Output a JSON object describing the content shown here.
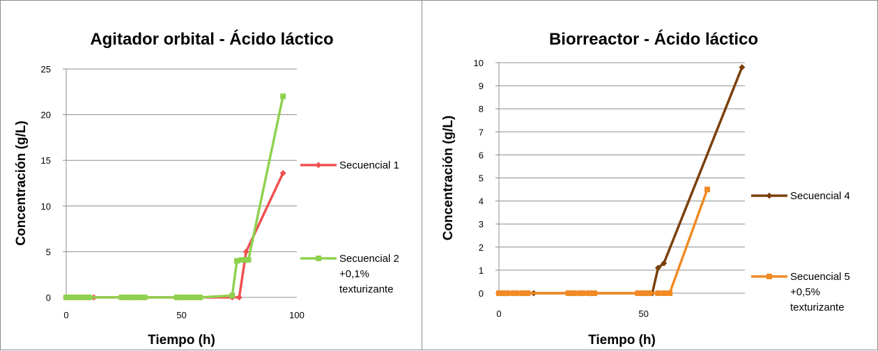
{
  "chart_data": [
    {
      "type": "line",
      "title": "Agitador orbital - Ácido láctico",
      "xlabel": "Tiempo (h)",
      "ylabel": "Concentración (g/L)",
      "xlim": [
        0,
        100
      ],
      "ylim": [
        0,
        25
      ],
      "xticks": [
        0,
        50,
        100
      ],
      "yticks": [
        0,
        5,
        10,
        15,
        20,
        25
      ],
      "grid": "horizontal",
      "legend": "right",
      "series": [
        {
          "name": "Secuencial 1",
          "color": "#f05050",
          "marker": "diamond",
          "x": [
            0,
            1,
            2,
            3,
            4,
            5,
            6,
            7,
            8,
            9,
            10,
            12,
            24,
            25,
            26,
            27,
            28,
            29,
            30,
            31,
            32,
            33,
            34,
            48,
            49,
            50,
            51,
            52,
            53,
            54,
            55,
            56,
            57,
            58,
            72,
            75,
            78,
            94
          ],
          "y": [
            0,
            0,
            0,
            0,
            0,
            0,
            0,
            0,
            0,
            0,
            0,
            0,
            0,
            0,
            0,
            0,
            0,
            0,
            0,
            0,
            0,
            0,
            0,
            0,
            0,
            0,
            0,
            0,
            0,
            0,
            0,
            0,
            0,
            0,
            0,
            0,
            5,
            13.6
          ]
        },
        {
          "name": "Secuencial 2 +0,1% texturizante",
          "legend_lines": [
            "Secuencial 2",
            "+0,1%",
            "texturizante"
          ],
          "color": "#8fd14f",
          "marker": "square",
          "x": [
            0,
            1,
            2,
            3,
            4,
            5,
            6,
            7,
            8,
            9,
            10,
            24,
            25,
            26,
            27,
            28,
            29,
            30,
            31,
            32,
            33,
            34,
            48,
            49,
            50,
            51,
            52,
            53,
            54,
            55,
            56,
            57,
            58,
            72,
            74,
            76,
            78,
            79,
            94
          ],
          "y": [
            0,
            0,
            0,
            0,
            0,
            0,
            0,
            0,
            0,
            0,
            0,
            0,
            0,
            0,
            0,
            0,
            0,
            0,
            0,
            0,
            0,
            0,
            0,
            0,
            0,
            0,
            0,
            0,
            0,
            0,
            0,
            0,
            0,
            0.2,
            4,
            4.1,
            4.1,
            4.1,
            22
          ]
        }
      ]
    },
    {
      "type": "line",
      "title": "Biorreactor - Ácido láctico",
      "xlabel": "Tiempo (h)",
      "ylabel": "Concentración (g/L)",
      "xlim": [
        0,
        85
      ],
      "ylim": [
        0,
        10
      ],
      "xticks": [
        0,
        50
      ],
      "yticks": [
        0,
        1,
        2,
        3,
        4,
        5,
        6,
        7,
        8,
        9,
        10
      ],
      "grid": "horizontal",
      "legend": "right",
      "series": [
        {
          "name": "Secuencial 4",
          "color": "#7b3f0a",
          "marker": "diamond",
          "x": [
            0,
            1,
            2,
            3,
            5,
            6,
            8,
            9,
            10,
            12,
            24,
            25,
            26,
            28,
            29,
            31,
            32,
            33,
            48,
            49,
            50,
            51,
            52,
            53,
            55,
            57,
            84
          ],
          "y": [
            0,
            0,
            0,
            0,
            0,
            0,
            0,
            0,
            0,
            0,
            0,
            0,
            0,
            0,
            0,
            0,
            0,
            0,
            0,
            0,
            0,
            0,
            0,
            0,
            1.1,
            1.3,
            9.8
          ]
        },
        {
          "name": "Secuencial 5 +0,5% texturizante",
          "legend_lines": [
            "Secuencial 5",
            "+0,5%",
            "texturizante"
          ],
          "color": "#f08a24",
          "marker": "square",
          "x": [
            0,
            1,
            2,
            3,
            5,
            6,
            8,
            9,
            10,
            24,
            25,
            26,
            28,
            29,
            31,
            32,
            33,
            48,
            49,
            50,
            51,
            52,
            55,
            57,
            58,
            59,
            72
          ],
          "y": [
            0,
            0,
            0,
            0,
            0,
            0,
            0,
            0,
            0,
            0,
            0,
            0,
            0,
            0,
            0,
            0,
            0,
            0,
            0,
            0,
            0,
            0,
            0,
            0,
            0,
            0,
            4.5
          ]
        }
      ]
    }
  ]
}
